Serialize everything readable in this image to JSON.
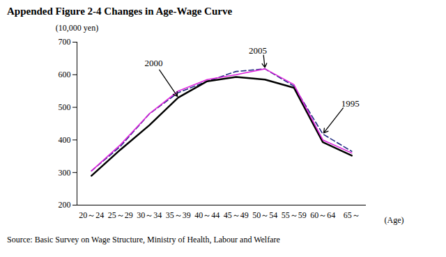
{
  "chart_data": {
    "type": "line",
    "title": "Appended Figure 2-4 Changes in Age-Wage Curve",
    "y_label": "(10,000 yen)",
    "x_label": "(Age)",
    "source": "Source: Basic Survey on Wage Structure, Ministry of Health, Labour and Welfare",
    "categories": [
      "20～24",
      "25～29",
      "30～34",
      "35～39",
      "40～44",
      "45～49",
      "50～54",
      "55～59",
      "60～64",
      "65～"
    ],
    "series": [
      {
        "name": "1995",
        "color": "#1f2a80",
        "line_style": "dashed",
        "values": [
          305,
          380,
          480,
          545,
          580,
          610,
          618,
          565,
          418,
          365
        ]
      },
      {
        "name": "2000",
        "color": "#000000",
        "line_style": "solid",
        "values": [
          290,
          370,
          445,
          530,
          580,
          593,
          585,
          560,
          393,
          352
        ]
      },
      {
        "name": "2005",
        "color": "#dd22dd",
        "line_style": "solid",
        "values": [
          305,
          385,
          480,
          550,
          585,
          600,
          618,
          570,
          400,
          360
        ]
      }
    ],
    "annotations": [
      {
        "text": "2000",
        "category": "35～39"
      },
      {
        "text": "2005",
        "category": "50～54"
      },
      {
        "text": "1995",
        "category": "60～64"
      }
    ],
    "ylim": [
      200,
      700
    ],
    "yticks": [
      200,
      300,
      400,
      500,
      600,
      700
    ],
    "grid": false
  }
}
